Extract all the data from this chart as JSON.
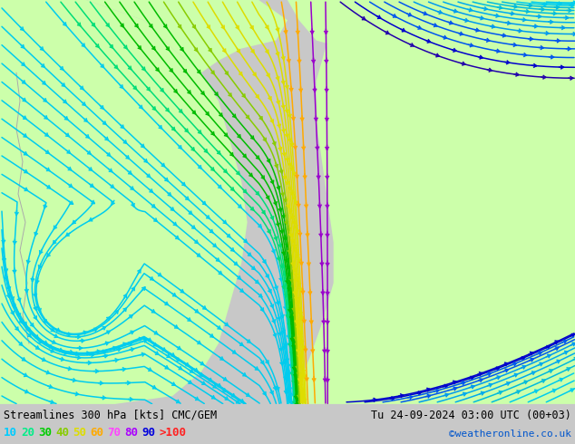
{
  "title_left": "Streamlines 300 hPa [kts] CMC/GEM",
  "title_right": "Tu 24-09-2024 03:00 UTC (00+03)",
  "credit": "©weatheronline.co.uk",
  "legend_values": [
    "10",
    "20",
    "30",
    "40",
    "50",
    "60",
    "70",
    "80",
    "90",
    ">100"
  ],
  "legend_colors": [
    "#00ccff",
    "#00ee88",
    "#00cc00",
    "#88cc00",
    "#dddd00",
    "#ffaa00",
    "#ff44ff",
    "#aa00ff",
    "#0000dd",
    "#ff2222"
  ],
  "bg_color_ocean": "#c8c8c8",
  "bg_color_land": "#ccffaa",
  "coast_color": "#aaaaaa",
  "fig_width": 6.34,
  "fig_height": 4.9,
  "dpi": 100,
  "bottom_bg": "#ffffff",
  "bottom_text_color": "#000000",
  "credit_color": "#0055cc"
}
